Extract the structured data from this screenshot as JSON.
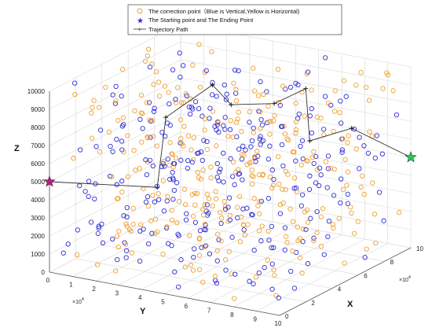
{
  "chart_data": {
    "type": "scatter",
    "dimensions": 3,
    "xlabel": "X",
    "ylabel": "Y",
    "zlabel": "Z",
    "x_tick_labels": [
      "0",
      "2",
      "4",
      "6",
      "8",
      "10"
    ],
    "x_multiplier": "×10",
    "x_multiplier_exp": "4",
    "y_tick_labels": [
      "0",
      "1",
      "2",
      "3",
      "4",
      "5",
      "6",
      "7",
      "8",
      "9",
      "10"
    ],
    "y_multiplier": "×10",
    "y_multiplier_exp": "4",
    "z_tick_labels": [
      "0",
      "1000",
      "2000",
      "3000",
      "4000",
      "5000",
      "6000",
      "7000",
      "8000",
      "9000",
      "10000"
    ],
    "xlim": [
      0,
      100000
    ],
    "ylim": [
      0,
      100000
    ],
    "zlim": [
      0,
      10000
    ],
    "grid": true,
    "legend_position": "top",
    "legend": [
      {
        "label": "The correction point（Blue is Vertical,Yellow is Horizontal)",
        "marker": "circle"
      },
      {
        "label": "The Starting point and The Ending Point",
        "marker": "star"
      },
      {
        "label": "Trajectory Path",
        "marker": "plus-line"
      }
    ],
    "colors": {
      "vertical": "#2d2dd6",
      "horizontal": "#f0a030",
      "start": "#c0168f",
      "end": "#22cc55",
      "path": "#333333",
      "grid": "#d8d8d8"
    },
    "series": [
      {
        "name": "Blue is Vertical",
        "type": "random_cloud",
        "count": 300
      },
      {
        "name": "Yellow is Horizontal",
        "type": "random_cloud",
        "count": 320
      }
    ],
    "trajectory": [
      {
        "x": 0,
        "y": 0,
        "z": 5000
      },
      {
        "x": 12000,
        "y": 40000,
        "z": 5200
      },
      {
        "x": 15000,
        "y": 42000,
        "z": 9000
      },
      {
        "x": 40000,
        "y": 48000,
        "z": 10000
      },
      {
        "x": 42000,
        "y": 55000,
        "z": 9000
      },
      {
        "x": 52000,
        "y": 68000,
        "z": 9000
      },
      {
        "x": 55000,
        "y": 80000,
        "z": 10000
      },
      {
        "x": 58000,
        "y": 80000,
        "z": 7000
      },
      {
        "x": 90000,
        "y": 80000,
        "z": 6500
      },
      {
        "x": 100000,
        "y": 100000,
        "z": 5000
      }
    ],
    "start_point": {
      "x": 0,
      "y": 0,
      "z": 5000
    },
    "end_point": {
      "x": 100000,
      "y": 100000,
      "z": 5000
    }
  }
}
